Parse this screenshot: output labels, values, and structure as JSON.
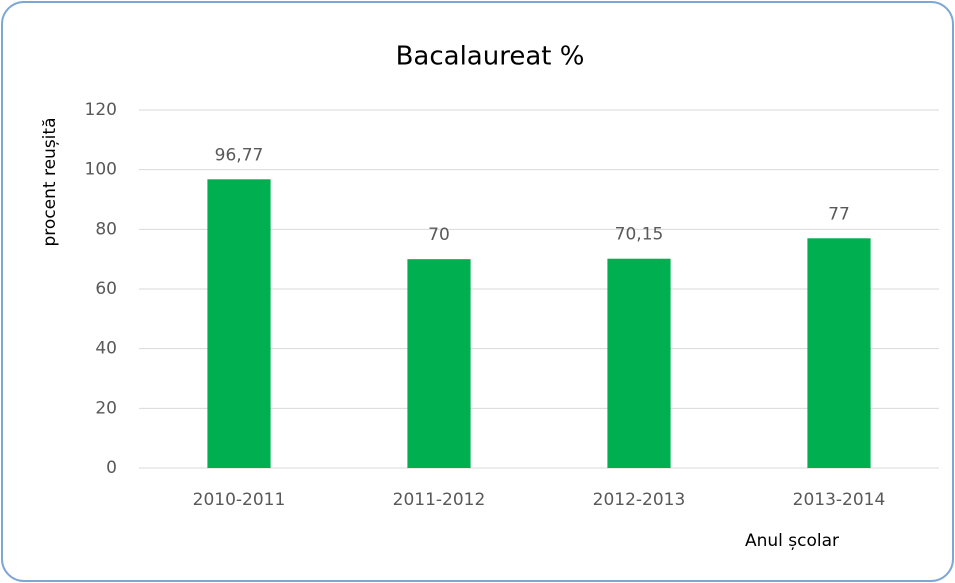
{
  "chart_data": {
    "type": "bar",
    "title": "Bacalaureat %",
    "y_label": "procent reușită",
    "x_label": "Anul școlar",
    "categories": [
      "2010-2011",
      "2011-2012",
      "2012-2013",
      "2013-2014"
    ],
    "values": [
      96.77,
      70,
      70.15,
      77
    ],
    "value_labels": [
      "96,77",
      "70",
      "70,15",
      "77"
    ],
    "color": "#00b050",
    "ylim": [
      0,
      120
    ],
    "yticks": [
      0,
      20,
      40,
      60,
      80,
      100,
      120
    ],
    "grid": true
  }
}
